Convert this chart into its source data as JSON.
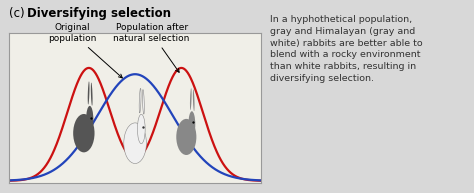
{
  "title_prefix": "(c) ",
  "title_bold": "Diversifying selection",
  "bg_color": "#d8d8d8",
  "box_bg": "#f0efe8",
  "box_edge": "#999999",
  "red_color": "#cc1111",
  "blue_color": "#2244bb",
  "label_original": "Original\npopulation",
  "label_after": "Population after\nnatural selection",
  "annotation_text": "In a hyphothetical population,\ngray and Himalayan (gray and\nwhite) rabbits are better able to\nblend with a rocky environment\nthan white rabbits, resulting in\ndiversifying selection.",
  "red_peaks": [
    -1.4,
    1.4
  ],
  "red_sigma": 0.65,
  "blue_peak": 0.0,
  "blue_sigma": 1.15,
  "x_min": -3.8,
  "x_max": 3.8,
  "label_fontsize": 6.5,
  "annot_fontsize": 6.8,
  "title_fontsize": 8.5
}
